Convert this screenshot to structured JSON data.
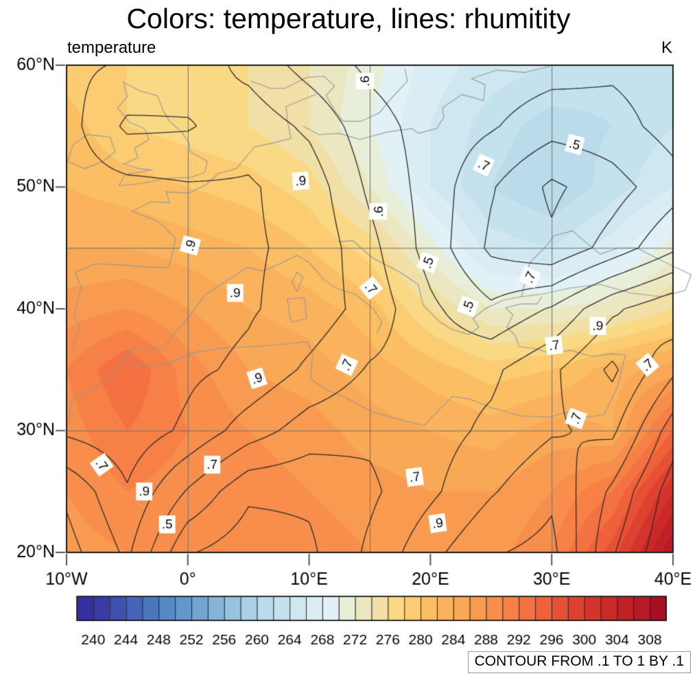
{
  "figure": {
    "title": "Colors: temperature, lines: rhumitity",
    "left_label": "temperature",
    "right_label": "K",
    "contour_note": "CONTOUR FROM .1 TO 1 BY .1"
  },
  "chart_data": {
    "type": "heatmap",
    "subtype": "filled_contour_map_with_line_contours",
    "title": "Colors: temperature, lines: rhumitity",
    "fill_field_name": "temperature",
    "fill_units": "K",
    "line_field_name": "rhumitity",
    "xaxis": {
      "range": [
        -10,
        40
      ],
      "ticks": [
        {
          "lon": -10,
          "label": "10°W"
        },
        {
          "lon": 0,
          "label": "0°"
        },
        {
          "lon": 10,
          "label": "10°E"
        },
        {
          "lon": 20,
          "label": "20°E"
        },
        {
          "lon": 30,
          "label": "30°E"
        },
        {
          "lon": 40,
          "label": "40°E"
        }
      ]
    },
    "yaxis": {
      "range": [
        20,
        60
      ],
      "ticks": [
        {
          "lat": 60,
          "label": "60°N"
        },
        {
          "lat": 50,
          "label": "50°N"
        },
        {
          "lat": 40,
          "label": "40°N"
        },
        {
          "lat": 30,
          "label": "30°N"
        },
        {
          "lat": 20,
          "label": "20°N"
        }
      ]
    },
    "gridlines": {
      "lons": [
        0,
        15,
        30
      ],
      "lats": [
        30,
        45
      ]
    },
    "grid_lons": [
      -10,
      -5,
      0,
      5,
      10,
      15,
      20,
      25,
      30,
      35,
      40
    ],
    "grid_lats": [
      60,
      55,
      50,
      45,
      40,
      35,
      30,
      25,
      20
    ],
    "temperature_grid": [
      [
        279,
        278,
        277,
        276,
        274,
        271,
        267,
        265,
        264,
        263,
        263
      ],
      [
        281,
        278,
        277,
        276,
        274,
        270,
        266,
        263,
        261,
        262,
        264
      ],
      [
        282,
        281,
        280,
        279,
        277,
        272,
        266,
        262,
        260,
        263,
        266
      ],
      [
        284,
        284,
        283,
        282,
        280,
        277,
        271,
        265,
        264,
        267,
        271
      ],
      [
        287,
        288,
        286,
        284,
        283,
        281,
        276,
        272,
        272,
        273,
        276
      ],
      [
        290,
        294,
        289,
        286,
        285,
        283,
        281,
        279,
        280,
        283,
        285
      ],
      [
        289,
        292,
        290,
        288,
        287,
        285,
        284,
        283,
        285,
        284,
        294
      ],
      [
        288,
        290,
        289,
        289,
        288,
        287,
        286,
        286,
        288,
        292,
        302
      ],
      [
        287,
        288,
        288,
        290,
        289,
        288,
        287,
        287,
        290,
        297,
        308
      ]
    ],
    "humidity_grid": [
      [
        0.92,
        0.89,
        0.86,
        0.77,
        0.66,
        0.58,
        0.54,
        0.56,
        0.54,
        0.52,
        0.55
      ],
      [
        0.94,
        0.78,
        0.79,
        0.86,
        0.78,
        0.64,
        0.56,
        0.51,
        0.44,
        0.46,
        0.54
      ],
      [
        0.95,
        0.93,
        0.91,
        0.91,
        0.86,
        0.68,
        0.56,
        0.41,
        0.28,
        0.36,
        0.46
      ],
      [
        0.96,
        0.94,
        0.93,
        0.91,
        0.88,
        0.73,
        0.56,
        0.38,
        0.32,
        0.44,
        0.58
      ],
      [
        0.96,
        0.97,
        0.94,
        0.91,
        0.86,
        0.76,
        0.62,
        0.52,
        0.61,
        0.78,
        0.88
      ],
      [
        0.97,
        0.99,
        0.92,
        0.88,
        0.78,
        0.69,
        0.66,
        0.68,
        0.78,
        0.92,
        0.72
      ],
      [
        0.92,
        0.96,
        0.88,
        0.75,
        0.65,
        0.62,
        0.66,
        0.72,
        0.79,
        0.82,
        0.55
      ],
      [
        0.72,
        0.89,
        0.69,
        0.52,
        0.52,
        0.58,
        0.68,
        0.79,
        0.88,
        0.68,
        0.45
      ],
      [
        0.66,
        0.82,
        0.51,
        0.44,
        0.48,
        0.62,
        0.77,
        0.89,
        0.93,
        0.61,
        0.41
      ]
    ],
    "contour_levels": {
      "from": 0.1,
      "to": 1,
      "by": 0.1
    },
    "contour_labels": [
      {
        "text": ".6",
        "lon": 14.6,
        "lat": 58.7,
        "rot": 90
      },
      {
        "text": ".5",
        "lon": 31.9,
        "lat": 53.5,
        "rot": -15
      },
      {
        "text": ".7",
        "lon": 24.4,
        "lat": 51.8,
        "rot": -25
      },
      {
        "text": ".9",
        "lon": 9.3,
        "lat": 50.5,
        "rot": 5
      },
      {
        "text": ".6",
        "lon": 15.7,
        "lat": 48.0,
        "rot": 90
      },
      {
        "text": ".9",
        "lon": 0.2,
        "lat": 45.2,
        "rot": 75
      },
      {
        "text": ".5",
        "lon": 19.8,
        "lat": 43.8,
        "rot": 70
      },
      {
        "text": ".7",
        "lon": 28.2,
        "lat": 42.6,
        "rot": 65
      },
      {
        "text": ".9",
        "lon": 3.9,
        "lat": 41.3,
        "rot": 0
      },
      {
        "text": ".5",
        "lon": 23.1,
        "lat": 40.2,
        "rot": 70
      },
      {
        "text": ".7",
        "lon": 15.1,
        "lat": 41.7,
        "rot": -50
      },
      {
        "text": ".9",
        "lon": 33.8,
        "lat": 38.6,
        "rot": 0
      },
      {
        "text": ".7",
        "lon": 30.2,
        "lat": 37.0,
        "rot": 8
      },
      {
        "text": ".7",
        "lon": 13.1,
        "lat": 35.4,
        "rot": 65
      },
      {
        "text": ".9",
        "lon": 5.7,
        "lat": 34.3,
        "rot": 18
      },
      {
        "text": ".7",
        "lon": 37.9,
        "lat": 35.4,
        "rot": 40
      },
      {
        "text": ".7",
        "lon": 32.0,
        "lat": 31.0,
        "rot": 70
      },
      {
        "text": ".7",
        "lon": -7.1,
        "lat": 27.2,
        "rot": -55
      },
      {
        "text": ".7",
        "lon": 2.0,
        "lat": 27.2,
        "rot": 0
      },
      {
        "text": ".9",
        "lon": -3.6,
        "lat": 25.0,
        "rot": 0
      },
      {
        "text": ".7",
        "lon": 18.7,
        "lat": 26.2,
        "rot": 8
      },
      {
        "text": ".5",
        "lon": -1.7,
        "lat": 22.3,
        "rot": 0
      },
      {
        "text": ".9",
        "lon": 20.6,
        "lat": 22.4,
        "rot": 8
      }
    ],
    "colorbar": {
      "min": 238,
      "max": 310,
      "step": 2,
      "tick_values": [
        240,
        244,
        248,
        252,
        256,
        260,
        264,
        268,
        272,
        276,
        280,
        284,
        288,
        292,
        296,
        300,
        304,
        308
      ],
      "colors": [
        "#35309E",
        "#3A3CA6",
        "#3F51AE",
        "#4464B6",
        "#4B77BD",
        "#5589C4",
        "#6297CB",
        "#72A5D1",
        "#85B4D8",
        "#98C3DE",
        "#AAD1E5",
        "#B9DBEA",
        "#C4E2EE",
        "#CFE7F1",
        "#DBEDF4",
        "#E2F1F6",
        "#E8EFD9",
        "#EBE7C0",
        "#F0E0A6",
        "#F9D984",
        "#FBCC72",
        "#FBBE62",
        "#FAB25C",
        "#F9A855",
        "#F89B51",
        "#F78E4C",
        "#F68046",
        "#F47141",
        "#F0603A",
        "#E75035",
        "#DE4130",
        "#D4342B",
        "#CA2927",
        "#C02026",
        "#B61A25",
        "#A90E24"
      ]
    },
    "coastlines": [
      [
        [
          -9.5,
          36.8
        ],
        [
          -8.9,
          38.5
        ],
        [
          -9.4,
          39.4
        ],
        [
          -8.8,
          41.8
        ],
        [
          -9.3,
          43.0
        ],
        [
          -7.6,
          43.7
        ],
        [
          -5.5,
          43.6
        ],
        [
          -3.0,
          43.4
        ],
        [
          -1.6,
          43.4
        ],
        [
          -1.2,
          44.8
        ],
        [
          -1.0,
          45.8
        ],
        [
          -2.5,
          47.2
        ],
        [
          -4.6,
          48.0
        ],
        [
          -3.0,
          48.8
        ],
        [
          -1.5,
          48.7
        ],
        [
          -1.8,
          49.6
        ],
        [
          0.1,
          49.5
        ],
        [
          1.5,
          50.2
        ],
        [
          2.5,
          51.1
        ],
        [
          4.0,
          51.5
        ],
        [
          5.5,
          53.3
        ],
        [
          7.0,
          53.6
        ],
        [
          8.5,
          54.0
        ],
        [
          8.2,
          55.5
        ],
        [
          8.1,
          56.6
        ],
        [
          9.5,
          57.2
        ],
        [
          10.6,
          57.6
        ]
      ],
      [
        [
          -5.4,
          36.0
        ],
        [
          -4.4,
          36.7
        ],
        [
          -2.1,
          36.8
        ],
        [
          -0.3,
          38.9
        ],
        [
          0.2,
          39.5
        ],
        [
          1.5,
          41.2
        ],
        [
          3.2,
          42.3
        ],
        [
          4.9,
          43.4
        ],
        [
          6.2,
          43.1
        ],
        [
          7.6,
          43.7
        ],
        [
          9.0,
          44.4
        ],
        [
          10.0,
          43.8
        ],
        [
          11.2,
          42.4
        ],
        [
          12.2,
          41.7
        ],
        [
          13.8,
          41.2
        ],
        [
          15.3,
          40.0
        ],
        [
          16.0,
          38.9
        ],
        [
          15.6,
          38.0
        ]
      ],
      [
        [
          12.4,
          45.5
        ],
        [
          13.6,
          45.6
        ],
        [
          15.2,
          44.2
        ],
        [
          17.5,
          43.0
        ],
        [
          19.0,
          42.0
        ],
        [
          19.4,
          40.3
        ],
        [
          20.8,
          38.9
        ],
        [
          21.8,
          38.3
        ],
        [
          23.2,
          37.9
        ],
        [
          24.0,
          38.5
        ],
        [
          23.5,
          39.2
        ],
        [
          24.5,
          40.0
        ],
        [
          26.0,
          40.7
        ],
        [
          27.5,
          41.0
        ]
      ],
      [
        [
          27.5,
          41.0
        ],
        [
          29.2,
          41.2
        ],
        [
          31.5,
          41.7
        ],
        [
          34.0,
          42.0
        ],
        [
          36.5,
          41.3
        ],
        [
          39.0,
          41.0
        ],
        [
          41.0,
          41.5
        ],
        [
          41.5,
          42.8
        ],
        [
          40.0,
          43.5
        ],
        [
          38.2,
          44.4
        ],
        [
          37.0,
          45.0
        ],
        [
          35.5,
          45.0
        ],
        [
          34.0,
          44.5
        ],
        [
          33.0,
          45.3
        ],
        [
          31.7,
          46.4
        ],
        [
          30.2,
          46.0
        ],
        [
          29.5,
          45.1
        ],
        [
          28.2,
          43.8
        ],
        [
          27.9,
          42.5
        ],
        [
          27.5,
          41.0
        ]
      ],
      [
        [
          -9.8,
          30.6
        ],
        [
          -9.6,
          32.4
        ],
        [
          -7.8,
          33.5
        ],
        [
          -6.0,
          34.6
        ],
        [
          -5.4,
          35.9
        ],
        [
          -3.8,
          35.2
        ],
        [
          -1.5,
          35.6
        ],
        [
          0.5,
          36.4
        ],
        [
          3.0,
          36.8
        ],
        [
          5.5,
          36.9
        ],
        [
          8.0,
          37.1
        ],
        [
          9.8,
          37.3
        ],
        [
          10.3,
          36.4
        ],
        [
          10.1,
          34.3
        ],
        [
          11.3,
          33.4
        ],
        [
          13.0,
          32.7
        ],
        [
          15.3,
          31.5
        ],
        [
          17.5,
          30.9
        ],
        [
          19.5,
          30.4
        ],
        [
          20.2,
          31.2
        ],
        [
          21.8,
          32.8
        ],
        [
          23.2,
          32.6
        ],
        [
          25.0,
          31.9
        ],
        [
          27.5,
          31.2
        ],
        [
          29.8,
          31.1
        ],
        [
          31.2,
          31.5
        ],
        [
          32.8,
          31.1
        ],
        [
          34.3,
          31.3
        ],
        [
          34.9,
          32.5
        ],
        [
          35.5,
          33.8
        ],
        [
          35.8,
          35.2
        ],
        [
          36.1,
          36.2
        ],
        [
          35.0,
          36.3
        ],
        [
          33.3,
          36.1
        ],
        [
          31.5,
          36.6
        ],
        [
          30.0,
          36.3
        ],
        [
          28.8,
          36.7
        ],
        [
          27.3,
          36.9
        ],
        [
          27.0,
          37.8
        ],
        [
          26.3,
          38.5
        ],
        [
          26.8,
          39.5
        ],
        [
          26.2,
          40.1
        ],
        [
          27.5,
          40.4
        ],
        [
          28.8,
          40.4
        ],
        [
          29.2,
          41.0
        ]
      ],
      [
        [
          -5.7,
          50.1
        ],
        [
          -3.8,
          50.3
        ],
        [
          -1.9,
          50.7
        ],
        [
          0.3,
          50.8
        ],
        [
          1.4,
          51.2
        ],
        [
          1.6,
          52.1
        ],
        [
          0.2,
          52.9
        ],
        [
          0.1,
          53.6
        ],
        [
          -0.5,
          54.5
        ],
        [
          -1.5,
          55.4
        ],
        [
          -2.0,
          56.2
        ],
        [
          -2.5,
          57.5
        ],
        [
          -4.0,
          57.9
        ],
        [
          -5.3,
          58.6
        ],
        [
          -5.0,
          57.4
        ],
        [
          -5.8,
          56.5
        ],
        [
          -4.8,
          55.3
        ],
        [
          -3.6,
          54.8
        ],
        [
          -3.2,
          53.9
        ],
        [
          -4.4,
          53.2
        ],
        [
          -4.1,
          52.4
        ],
        [
          -5.3,
          51.9
        ],
        [
          -4.0,
          51.5
        ],
        [
          -3.0,
          51.4
        ],
        [
          -5.2,
          51.0
        ],
        [
          -5.7,
          50.1
        ]
      ],
      [
        [
          -8.5,
          51.5
        ],
        [
          -9.9,
          52.1
        ],
        [
          -9.5,
          53.4
        ],
        [
          -8.3,
          54.3
        ],
        [
          -6.4,
          54.1
        ],
        [
          -6.0,
          52.9
        ],
        [
          -7.0,
          52.1
        ],
        [
          -8.5,
          51.5
        ]
      ],
      [
        [
          5.2,
          58.7
        ],
        [
          6.8,
          58.1
        ],
        [
          8.0,
          58.1
        ],
        [
          9.8,
          59.0
        ],
        [
          11.2,
          59.1
        ],
        [
          12.1,
          58.3
        ],
        [
          11.4,
          57.5
        ],
        [
          12.1,
          56.3
        ],
        [
          12.8,
          55.4
        ],
        [
          14.3,
          55.4
        ],
        [
          15.8,
          56.1
        ],
        [
          16.8,
          57.3
        ],
        [
          18.1,
          58.7
        ],
        [
          17.9,
          59.7
        ]
      ],
      [
        [
          19.0,
          54.4
        ],
        [
          20.5,
          54.8
        ],
        [
          21.1,
          55.7
        ],
        [
          21.0,
          56.5
        ],
        [
          22.6,
          57.6
        ],
        [
          24.4,
          57.1
        ],
        [
          24.5,
          58.4
        ],
        [
          23.4,
          58.9
        ],
        [
          25.5,
          59.6
        ],
        [
          27.8,
          59.4
        ],
        [
          29.8,
          59.9
        ]
      ],
      [
        [
          9.5,
          55.0
        ],
        [
          10.8,
          54.3
        ],
        [
          12.5,
          54.4
        ],
        [
          14.2,
          53.9
        ],
        [
          16.4,
          54.5
        ],
        [
          18.5,
          54.8
        ],
        [
          19.0,
          54.4
        ]
      ],
      [
        [
          9.0,
          41.4
        ],
        [
          9.5,
          42.6
        ],
        [
          9.0,
          43.0
        ],
        [
          8.6,
          42.2
        ],
        [
          9.0,
          41.4
        ]
      ],
      [
        [
          8.5,
          38.9
        ],
        [
          9.8,
          39.2
        ],
        [
          9.6,
          40.9
        ],
        [
          8.2,
          40.8
        ],
        [
          8.5,
          38.9
        ]
      ]
    ]
  }
}
